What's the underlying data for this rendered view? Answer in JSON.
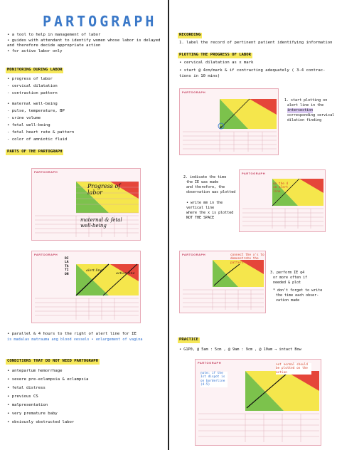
{
  "left": {
    "title": "PARTOGRAPH",
    "intro": [
      "• a tool to help in management of labor",
      "• guides with attendant to identify women whose labor is delayed",
      "  and therefore decide appropriate action",
      "• for active labor only"
    ],
    "monitoring_heading": "MONITORING DURING LABOR",
    "monitoring": [
      "• progress of labor",
      "   - cervical dilatation",
      "   - contraction pattern",
      "• maternal well-being",
      "   - pulse, temperature, BP",
      "   - urine volume",
      "• fetal well-being",
      "   - fetal heart rate & pattern",
      "   - color of amniotic fluid"
    ],
    "parts_heading": "PARTS OF THE PARTOGRAPH",
    "card1_labels": {
      "progress": "Progress of labor",
      "wellbeing": "maternal & fetal well-being"
    },
    "card2_labels": {
      "alert": "alert line",
      "action": "action line",
      "dilatation": "DILATATION"
    },
    "parallel": [
      "• parallel & 4 hours to the right of alert line for IE",
      "  is madalas matrauma ang blood vessels • enlargement of vagina"
    ],
    "conditions_heading": "CONDITIONS THAT DO NOT NEED PARTOGRAPH",
    "conditions": [
      "• antepartum hemorrhage",
      "• severe pre-eclampsia & eclampsia",
      "• fetal distress",
      "• previous CS",
      "• malpresentation",
      "• very premature baby",
      "• obviously obstructed labor"
    ]
  },
  "right": {
    "recording_heading": "RECORDING",
    "recording": [
      "1. label the record of pertinent patient identifying information"
    ],
    "plotting_heading": "PLOTTING THE PROGRESS OF LABOR",
    "plotting": [
      "• cervical dilatation as x mark",
      "• start @ 4cm/mark & if contracting adequately ( 3-4 contrac-",
      "  tions in 10 mins)"
    ],
    "step1": [
      "1. start plotting on",
      "alert line in the",
      "intersection",
      "corresponding cervical",
      "dilation finding"
    ],
    "step2": [
      "2. indicate the time",
      "the IE was made",
      "and therefore, the",
      "observation was plotted",
      "",
      "• write mm in the",
      "  vertical line",
      "  where the x is plotted",
      "  NOT THE SPACE"
    ],
    "step2_note": "on the 4 cm alert line",
    "step3": [
      "3. perform IE q4",
      "or more often if",
      "needed & plot",
      "",
      "* don't forget to write",
      "the time each obser-",
      "vation made"
    ],
    "step3_note": "connect the x's to demonstrate the pattern",
    "practice_heading": "PRACTICE",
    "practice": "• G1P0, @ 5am : 5cm , @ 9am : 9cm , @ 10am → intact Bow",
    "practice_note1": "not normal should be plotted on the action",
    "practice_note2": "note: if the 1st dispot is on borderline (4-5)",
    "card_title": "PARTOGRAPH"
  }
}
